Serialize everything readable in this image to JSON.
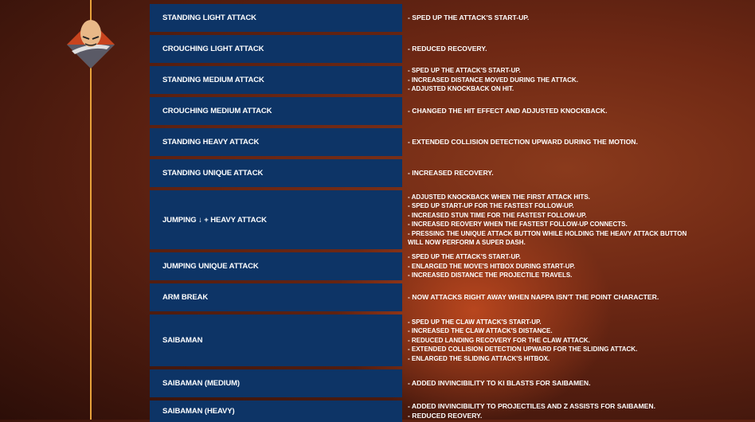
{
  "character_portrait": "nappa-portrait",
  "colors": {
    "cell_bg": "#0d3466",
    "divider": "#e8a23a",
    "background": "#6e2814"
  },
  "rows": [
    {
      "move": "STANDING LIGHT ATTACK",
      "notes": [
        "- SPED UP THE ATTACK'S START-UP."
      ]
    },
    {
      "move": "CROUCHING LIGHT ATTACK",
      "notes": [
        "- REDUCED RECOVERY."
      ]
    },
    {
      "move": "STANDING MEDIUM ATTACK",
      "notes": [
        "- SPED UP THE ATTACK'S START-UP.",
        "- INCREASED DISTANCE MOVED DURING THE ATTACK.",
        "- ADJUSTED KNOCKBACK ON HIT."
      ]
    },
    {
      "move": "CROUCHING MEDIUM ATTACK",
      "notes": [
        "- CHANGED THE HIT EFFECT AND ADJUSTED KNOCKBACK."
      ]
    },
    {
      "move": "STANDING HEAVY ATTACK",
      "notes": [
        "- EXTENDED COLLISION DETECTION UPWARD DURING THE MOTION."
      ]
    },
    {
      "move": "STANDING UNIQUE ATTACK",
      "notes": [
        "- INCREASED RECOVERY."
      ]
    },
    {
      "move": "JUMPING ↓ + HEAVY ATTACK",
      "notes": [
        "- ADJUSTED KNOCKBACK WHEN THE FIRST ATTACK HITS.",
        "- SPED UP START-UP FOR THE FASTEST FOLLOW-UP.",
        "- INCREASED STUN TIME FOR THE FASTEST FOLLOW-UP.",
        "- INCREASED REOVERY WHEN THE FASTEST FOLLOW-UP CONNECTS.",
        "- PRESSING THE UNIQUE ATTACK BUTTON WHILE HOLDING THE HEAVY ATTACK BUTTON",
        "WILL NOW PERFORM A SUPER DASH."
      ]
    },
    {
      "move": "JUMPING UNIQUE ATTACK",
      "notes": [
        "- SPED UP THE ATTACK'S START-UP.",
        "- ENLARGED THE MOVE'S HITBOX DURING START-UP.",
        "- INCREASED DISTANCE THE PROJECTILE TRAVELS."
      ]
    },
    {
      "move": "ARM BREAK",
      "notes": [
        "- NOW ATTACKS RIGHT AWAY WHEN NAPPA ISN'T THE POINT CHARACTER."
      ]
    },
    {
      "move": "SAIBAMAN",
      "notes": [
        "- SPED UP THE CLAW ATTACK'S START-UP.",
        "- INCREASED THE CLAW ATTACK'S DISTANCE.",
        "- REDUCED LANDING RECOVERY FOR THE CLAW ATTACK.",
        "- EXTENDED COLLISION DETECTION UPWARD FOR THE SLIDING ATTACK.",
        "- ENLARGED THE SLIDING ATTACK'S HITBOX."
      ]
    },
    {
      "move": "SAIBAMAN (MEDIUM)",
      "notes": [
        "- ADDED INVINCIBILITY TO KI BLASTS FOR SAIBAMEN."
      ]
    },
    {
      "move": "SAIBAMAN (HEAVY)",
      "notes": [
        "- ADDED INVINCIBILITY TO PROJECTILES AND Z ASSISTS FOR SAIBAMEN.",
        "- REDUCED REOVERY."
      ]
    }
  ]
}
